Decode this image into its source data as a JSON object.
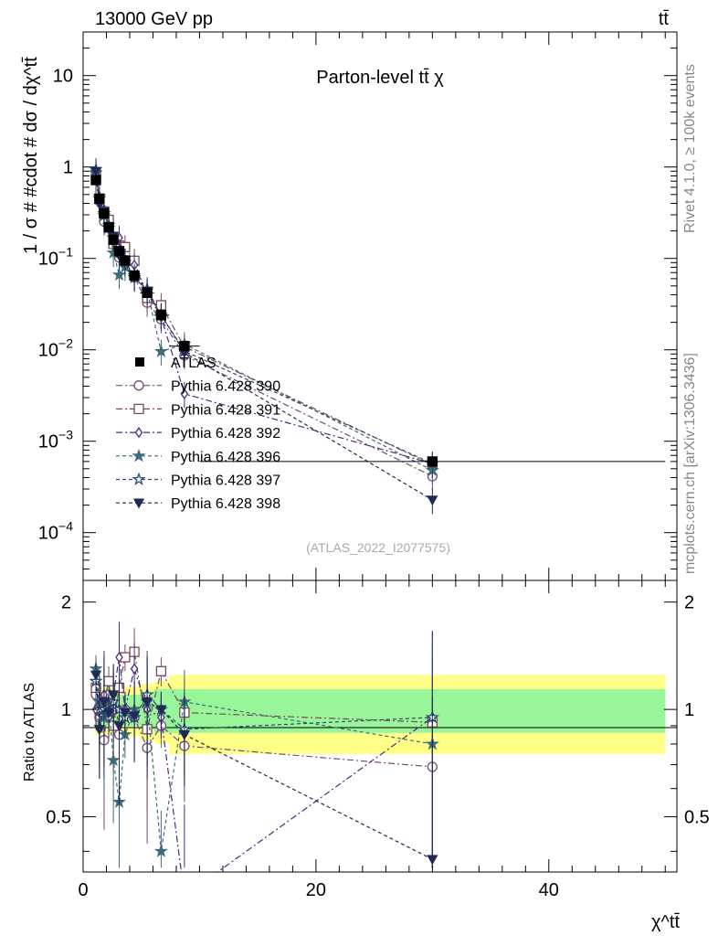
{
  "header": {
    "left": "13000 GeV pp",
    "right": "tt̄"
  },
  "side_labels": {
    "rivet": "Rivet 4.1.0, ≥ 100k events",
    "mcplots": "mcplots.cern.ch [arXiv:1306.3436]"
  },
  "chart_data": {
    "type": "line",
    "title": "Parton-level tt̄ χ",
    "ylabel": "1 / σ # #cdot # dσ / dχ^tt̄",
    "xlabel": "χ^tt̄",
    "ratio_ylabel": "Ratio to ATLAS",
    "watermark": "(ATLAS_2022_I2077575)",
    "yscale": "log",
    "ylim": [
      3e-05,
      30
    ],
    "xlim": [
      0,
      51
    ],
    "ratio_ylim": [
      0.35,
      2.3
    ],
    "ytick_labels": [
      "10",
      "1",
      "10^-1",
      "10^-2",
      "10^-3",
      "10^-4"
    ],
    "xtick_labels": [
      "0",
      "20",
      "40"
    ],
    "ratio_ytick_labels": [
      "0.5",
      "1",
      "2"
    ],
    "x": [
      1.1,
      1.4,
      1.8,
      2.2,
      2.6,
      3.1,
      3.6,
      4.4,
      5.5,
      6.7,
      8.7,
      30
    ],
    "bin_edges": [
      1,
      1.2,
      1.6,
      2.0,
      2.4,
      2.8,
      3.4,
      3.9,
      4.9,
      6.1,
      7.4,
      10,
      50
    ],
    "reference": {
      "name": "ATLAS",
      "values": [
        0.72,
        0.45,
        0.31,
        0.22,
        0.16,
        0.12,
        0.095,
        0.065,
        0.042,
        0.024,
        0.011,
        0.0006
      ],
      "band_inner": [
        0.1,
        0.1,
        0.1,
        0.1,
        0.1,
        0.1,
        0.1,
        0.1,
        0.12,
        0.14,
        0.14,
        0.14
      ],
      "band_outer": [
        0.15,
        0.15,
        0.15,
        0.15,
        0.15,
        0.15,
        0.16,
        0.16,
        0.18,
        0.2,
        0.25,
        0.25
      ]
    },
    "series": [
      {
        "name": "Pythia 6.428 390",
        "color": "#7a4a78",
        "marker": "circle-open",
        "dash": "7,3,2,3",
        "ratios": [
          1.1,
          0.95,
          0.82,
          1.1,
          1.0,
          0.85,
          1.0,
          0.95,
          0.78,
          0.9,
          0.79,
          0.69
        ]
      },
      {
        "name": "Pythia 6.428 391",
        "color": "#7a4a50",
        "marker": "square-open",
        "dash": "7,3,2,3",
        "ratios": [
          1.15,
          1.0,
          1.05,
          1.2,
          0.9,
          1.15,
          1.4,
          1.45,
          0.88,
          1.28,
          0.98,
          0.92
        ]
      },
      {
        "name": "Pythia 6.428 392",
        "color": "#4a2a7a",
        "marker": "diamond-open",
        "dash": "7,3,2,3",
        "ratios": [
          1.0,
          0.88,
          1.1,
          0.95,
          1.1,
          1.4,
          1.0,
          1.3,
          1.0,
          0.95,
          0.3,
          0.95
        ]
      },
      {
        "name": "Pythia 6.428 396",
        "color": "#3f6b7a",
        "marker": "star-filled",
        "dash": "4,3",
        "ratios": [
          1.3,
          1.05,
          0.95,
          1.05,
          0.72,
          0.55,
          0.85,
          1.0,
          1.05,
          0.4,
          1.05,
          0.8
        ]
      },
      {
        "name": "Pythia 6.428 397",
        "color": "#2c4a6b",
        "marker": "star-open",
        "dash": "4,3",
        "ratios": [
          1.2,
          1.0,
          1.0,
          0.98,
          1.05,
          1.0,
          0.95,
          0.95,
          1.1,
          1.0,
          0.88,
          0.95
        ]
      },
      {
        "name": "Pythia 6.428 398",
        "color": "#1f2a55",
        "marker": "triangle-down-filled",
        "dash": "4,3",
        "ratios": [
          1.25,
          0.88,
          1.05,
          0.98,
          1.1,
          0.9,
          0.98,
          0.96,
          1.05,
          1.0,
          0.85,
          0.38
        ]
      }
    ]
  }
}
